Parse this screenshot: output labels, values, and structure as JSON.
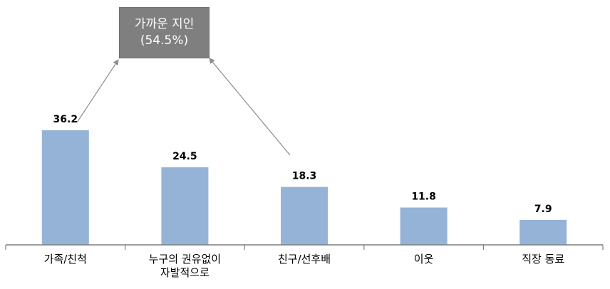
{
  "chart_data": {
    "type": "bar",
    "categories": [
      [
        "가족/친척"
      ],
      [
        "누구의 권유없이",
        "자발적으로"
      ],
      [
        "친구/선후배"
      ],
      [
        "이웃"
      ],
      [
        "직장 동료"
      ]
    ],
    "values": [
      36.2,
      24.5,
      18.3,
      11.8,
      7.9
    ],
    "value_labels": [
      "36.2",
      "24.5",
      "18.3",
      "11.8",
      "7.9"
    ],
    "ylim": [
      0,
      36.2
    ],
    "grid": false,
    "bar_color": "#95b3d7",
    "annotation": {
      "line1": "가까운 지인",
      "line2": "(54.5%)",
      "color": "#7f7f7f"
    }
  }
}
